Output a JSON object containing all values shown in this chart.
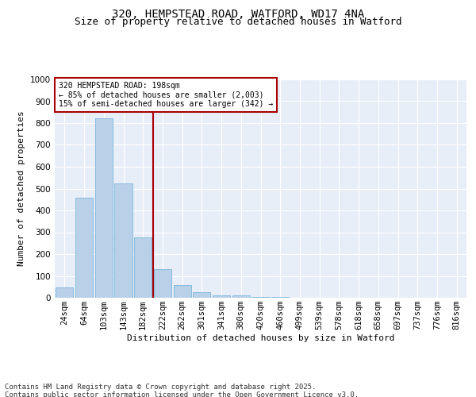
{
  "title_line1": "320, HEMPSTEAD ROAD, WATFORD, WD17 4NA",
  "title_line2": "Size of property relative to detached houses in Watford",
  "xlabel": "Distribution of detached houses by size in Watford",
  "ylabel": "Number of detached properties",
  "bar_color": "#b8d0e8",
  "bar_edge_color": "#6aaed6",
  "background_color": "#e8eef8",
  "grid_color": "#ffffff",
  "vline_color": "#aa0000",
  "annotation_text": "320 HEMPSTEAD ROAD: 198sqm\n← 85% of detached houses are smaller (2,003)\n15% of semi-detached houses are larger (342) →",
  "annotation_box_color": "#ffffff",
  "annotation_box_edge": "#aa0000",
  "categories": [
    "24sqm",
    "64sqm",
    "103sqm",
    "143sqm",
    "182sqm",
    "222sqm",
    "262sqm",
    "301sqm",
    "341sqm",
    "380sqm",
    "420sqm",
    "460sqm",
    "499sqm",
    "539sqm",
    "578sqm",
    "618sqm",
    "658sqm",
    "697sqm",
    "737sqm",
    "776sqm",
    "816sqm"
  ],
  "values": [
    47,
    460,
    820,
    525,
    275,
    130,
    60,
    25,
    10,
    10,
    5,
    2,
    1,
    1,
    1,
    0,
    0,
    0,
    0,
    0,
    0
  ],
  "ylim": [
    0,
    1000
  ],
  "yticks": [
    0,
    100,
    200,
    300,
    400,
    500,
    600,
    700,
    800,
    900,
    1000
  ],
  "footer_text": "Contains HM Land Registry data © Crown copyright and database right 2025.\nContains public sector information licensed under the Open Government Licence v3.0.",
  "title_fontsize": 10,
  "subtitle_fontsize": 9,
  "axis_label_fontsize": 8,
  "tick_fontsize": 7.5,
  "footer_fontsize": 6.5
}
